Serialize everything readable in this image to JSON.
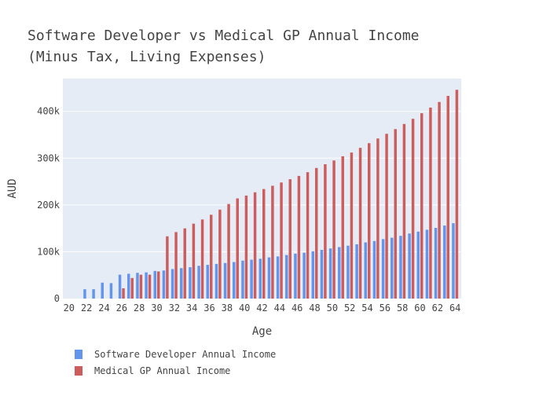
{
  "chart_data": {
    "type": "bar",
    "title_lines": [
      "Software Developer vs Medical GP Annual Income",
      "(Minus Tax, Living Expenses)"
    ],
    "xlabel": "Age",
    "ylabel": "AUD",
    "x": [
      20,
      21,
      22,
      23,
      24,
      25,
      26,
      27,
      28,
      29,
      30,
      31,
      32,
      33,
      34,
      35,
      36,
      37,
      38,
      39,
      40,
      41,
      42,
      43,
      44,
      45,
      46,
      47,
      48,
      49,
      50,
      51,
      52,
      53,
      54,
      55,
      56,
      57,
      58,
      59,
      60,
      61,
      62,
      63,
      64
    ],
    "x_ticks": [
      20,
      22,
      24,
      26,
      28,
      30,
      32,
      34,
      36,
      38,
      40,
      42,
      44,
      46,
      48,
      50,
      52,
      54,
      56,
      58,
      60,
      62,
      64
    ],
    "y_ticks": [
      0,
      100000,
      200000,
      300000,
      400000
    ],
    "y_tick_labels": [
      "0",
      "100k",
      "200k",
      "300k",
      "400k"
    ],
    "ylim": [
      0,
      470000
    ],
    "xlim": [
      19.3,
      64.7
    ],
    "series": [
      {
        "name": "Software Developer Annual Income",
        "color": "#6495ED",
        "values": [
          0,
          0,
          20000,
          20000,
          34000,
          33000,
          51000,
          53000,
          55000,
          56000,
          59000,
          60000,
          63000,
          65000,
          67000,
          70000,
          72000,
          74000,
          76000,
          78000,
          81000,
          83000,
          85000,
          88000,
          90000,
          93000,
          96000,
          98000,
          101000,
          104000,
          107000,
          110000,
          113000,
          116000,
          120000,
          123000,
          127000,
          130000,
          134000,
          139000,
          143000,
          147000,
          151000,
          156000,
          161000
        ]
      },
      {
        "name": "Medical GP Annual Income",
        "color": "#CD5C5C",
        "values": [
          0,
          0,
          0,
          0,
          0,
          0,
          22000,
          44000,
          51000,
          51000,
          58000,
          133000,
          142000,
          150000,
          160000,
          169000,
          179000,
          190000,
          202000,
          214000,
          220000,
          227000,
          234000,
          241000,
          248000,
          255000,
          262000,
          270000,
          279000,
          287000,
          295000,
          304000,
          312000,
          322000,
          332000,
          342000,
          352000,
          362000,
          373000,
          384000,
          396000,
          408000,
          420000,
          433000,
          446000
        ]
      }
    ],
    "grid": true,
    "legend_position": "bottom-left"
  }
}
